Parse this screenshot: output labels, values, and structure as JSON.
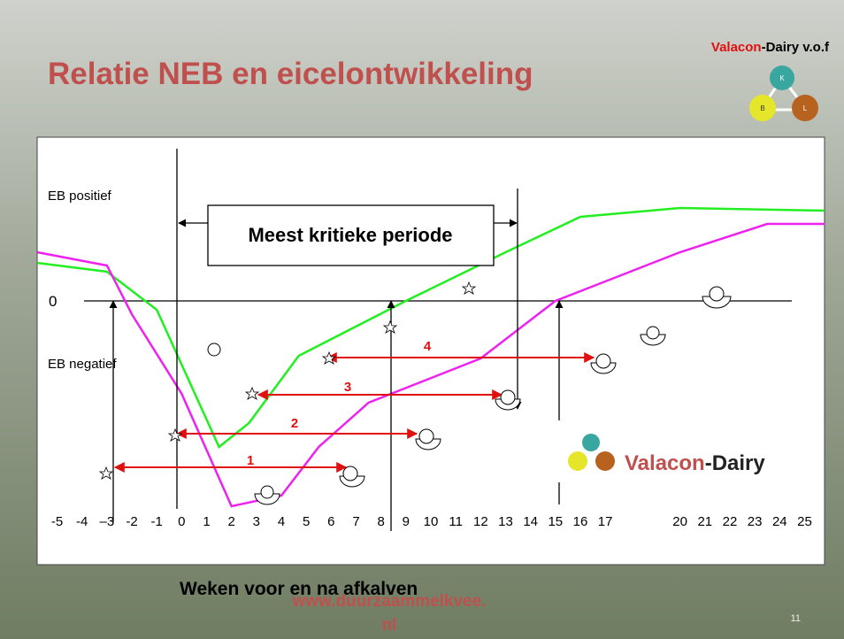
{
  "slide": {
    "title": "Relatie NEB en eicelontwikkeling",
    "brand_name": "Valacon",
    "brand_suffix": "-Dairy v.o.f",
    "logo_letters": [
      "K",
      "B",
      "L"
    ],
    "chart_brand_name": "Valacon",
    "chart_brand_suffix": "-Dairy",
    "url_lines": [
      "www.duurzaammelkvee.",
      "nl"
    ],
    "page_number": "11"
  },
  "chart_data": {
    "type": "line",
    "x_label": "Weken voor en na afkalven",
    "annotations": [
      "EB positief",
      "EB negatief",
      "Meest kritieke periode",
      "1",
      "2",
      "3",
      "4"
    ],
    "xlim": [
      -5.8,
      25.8
    ],
    "xticks": [
      -5,
      -4,
      {
        "value": -3,
        "label": "–3"
      },
      -2,
      -1,
      0,
      1,
      2,
      3,
      4,
      5,
      6,
      7,
      8,
      9,
      10,
      11,
      12,
      13,
      14,
      15,
      16,
      17,
      20,
      21,
      22,
      23,
      24,
      25
    ],
    "ylim": [
      -12,
      8
    ],
    "yticks": [
      0
    ],
    "grid": true,
    "series": [
      {
        "color": "#22ee22",
        "x": [
          -5.8,
          -3,
          -1,
          1.5,
          2.7,
          4.7,
          9,
          13,
          16,
          20,
          25.8
        ],
        "values": [
          2.15,
          1.65,
          -0.5,
          -8.25,
          -6.9,
          -3.1,
          0,
          2.75,
          4.75,
          5.25,
          5.1
        ]
      },
      {
        "color": "#ee22ee",
        "x": [
          -5.8,
          -3,
          -2,
          0,
          2,
          4,
          5.5,
          7.5,
          12,
          15,
          20,
          23.5,
          25.8
        ],
        "values": [
          2.75,
          2,
          -0.75,
          -5.25,
          -11.6,
          -11,
          -8.25,
          -5.75,
          -3.25,
          0,
          2.75,
          4.35,
          4.35
        ]
      }
    ]
  }
}
